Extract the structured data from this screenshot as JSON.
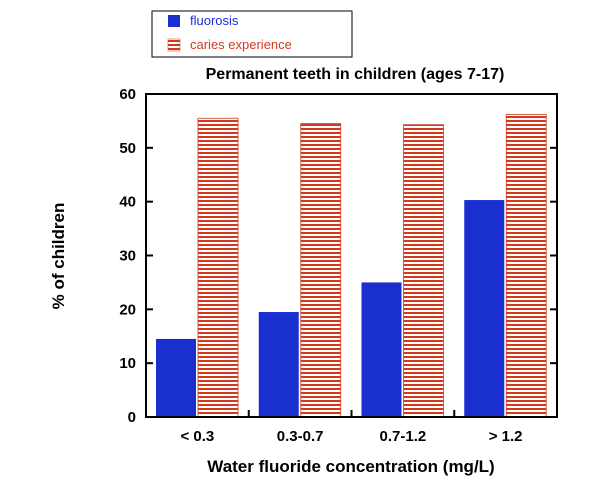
{
  "chart_data": {
    "type": "bar",
    "title": "Permanent teeth in children (ages 7-17)",
    "xlabel": "Water fluoride concentration (mg/L)",
    "ylabel": "% of children",
    "categories": [
      "< 0.3",
      "0.3-0.7",
      "0.7-1.2",
      "> 1.2"
    ],
    "series": [
      {
        "name": "fluorosis",
        "values": [
          14.5,
          19.5,
          25,
          40.3
        ],
        "color": "#1a2fd0",
        "pattern": "solid"
      },
      {
        "name": "caries experience",
        "values": [
          55.5,
          54.5,
          54.3,
          56.2
        ],
        "color": "#d13a1e",
        "pattern": "horizontal-stripes"
      }
    ],
    "ylim": [
      0,
      60
    ],
    "yticks": [
      0,
      10,
      20,
      30,
      40,
      50,
      60
    ],
    "grid": false,
    "legend_position": "top"
  }
}
